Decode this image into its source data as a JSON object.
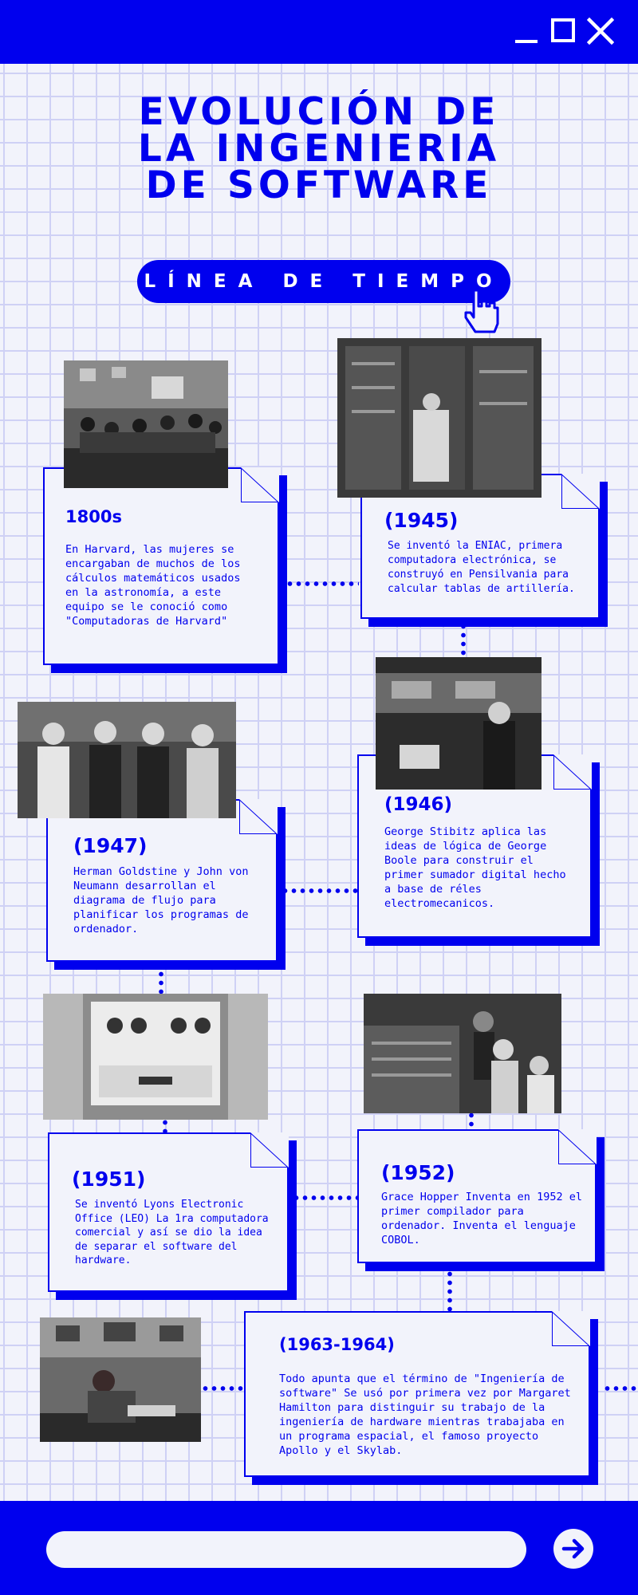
{
  "header": {
    "title": "EVOLUCIÓN DE LA INGENIERIA DE SOFTWARE",
    "subtitle": "LÍNEA DE TIEMPO"
  },
  "colors": {
    "accent": "#0000ee",
    "background": "#f2f3fb",
    "grid": "#cfd1f5"
  },
  "window_controls": [
    "minimize-icon",
    "maximize-icon",
    "close-icon"
  ],
  "events": [
    {
      "year": "1800s",
      "text": "En Harvard, las mujeres se encargaban de muchos de los cálculos matemáticos usados en la astronomía, a este equipo se le conoció como \"Computadoras de Harvard\""
    },
    {
      "year": "(1945)",
      "text": "Se inventó la ENIAC, primera computadora electrónica, se construyó en Pensilvania para calcular tablas de artillería."
    },
    {
      "year": "(1946)",
      "text": "George Stibitz aplica las ideas de lógica de George Boole para construir el primer sumador digital hecho a base de réles electromecanicos."
    },
    {
      "year": "(1947)",
      "text": "Herman Goldstine y John von Neumann desarrollan el diagrama de flujo para planificar los programas de ordenador."
    },
    {
      "year": "(1951)",
      "text": "Se inventó Lyons Electronic Office (LEO) La 1ra computadora comercial y así se dio la idea de separar el software del hardware."
    },
    {
      "year": "(1952)",
      "text": "Grace Hopper Inventa en 1952 el primer compilador para ordenador. Inventa el lenguaje COBOL."
    },
    {
      "year": "(1963-1964)",
      "text": "Todo apunta que el término de \"Ingeniería de software\" Se usó por primera vez por Margaret Hamilton para distinguir su trabajo de la ingeniería de hardware mientras trabajaba en un programa espacial, el famoso proyecto Apollo y el Skylab."
    }
  ],
  "footer": {
    "search_placeholder": "",
    "go_icon": "arrow-right-icon"
  }
}
